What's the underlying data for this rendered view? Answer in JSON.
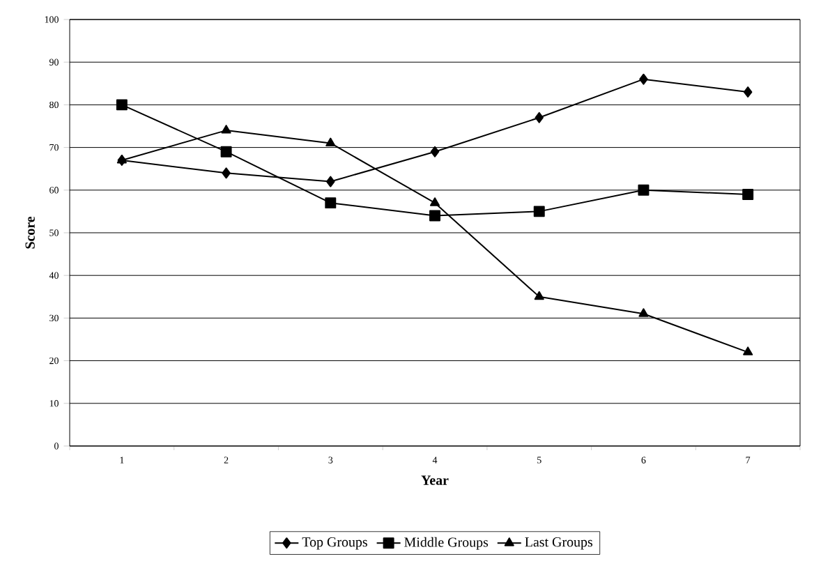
{
  "chart_data": {
    "type": "line",
    "xlabel": "Year",
    "ylabel": "Score",
    "categories": [
      "1",
      "2",
      "3",
      "4",
      "5",
      "6",
      "7"
    ],
    "series": [
      {
        "name": "Top Groups",
        "color": "#000000",
        "marker": "diamond",
        "values": [
          67,
          64,
          62,
          69,
          77,
          86,
          83
        ]
      },
      {
        "name": "Middle Groups",
        "color": "#000000",
        "marker": "square",
        "values": [
          80,
          69,
          57,
          54,
          55,
          60,
          59
        ]
      },
      {
        "name": "Last Groups",
        "color": "#000000",
        "marker": "triangle",
        "values": [
          67,
          74,
          71,
          57,
          35,
          31,
          22
        ]
      }
    ],
    "ylim": [
      0,
      100
    ],
    "yticks": [
      0,
      10,
      20,
      30,
      40,
      50,
      60,
      70,
      80,
      90,
      100
    ],
    "grid": "y",
    "legend": "bottom",
    "line_style": "solid"
  }
}
